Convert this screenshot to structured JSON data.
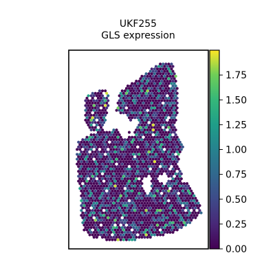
{
  "chart_data": {
    "type": "scatter",
    "title_lines": [
      "UKF255",
      "GLS expression"
    ],
    "xlabel": "",
    "ylabel": "",
    "colormap": "viridis",
    "color_range": [
      0,
      2.0
    ],
    "colorbar_ticks": [
      "0.00",
      "0.25",
      "0.50",
      "0.75",
      "1.00",
      "1.25",
      "1.50",
      "1.75"
    ],
    "colorbar_tick_values": [
      0,
      0.25,
      0.5,
      0.75,
      1.0,
      1.25,
      1.5,
      1.75
    ],
    "axis_ticks_visible": false,
    "grid": false,
    "spot_shape": "hexagon"
  }
}
